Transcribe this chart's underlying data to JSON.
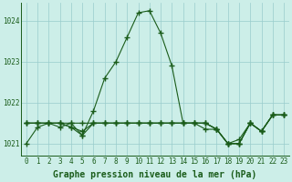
{
  "series": [
    [
      1021.0,
      1021.4,
      1021.5,
      1021.5,
      1021.4,
      1021.2,
      1021.8,
      1022.6,
      1023.0,
      1023.6,
      1024.2,
      1024.25,
      1023.7,
      1022.9,
      1021.5,
      1021.5,
      1021.5,
      1021.35,
      1021.0,
      1021.0,
      1021.5,
      1021.3,
      1021.7,
      1021.7
    ],
    [
      1021.5,
      1021.5,
      1021.5,
      1021.5,
      1021.5,
      1021.5,
      1021.5,
      1021.5,
      1021.5,
      1021.5,
      1021.5,
      1021.5,
      1021.5,
      1021.5,
      1021.5,
      1021.5,
      1021.5,
      1021.35,
      1021.0,
      1021.0,
      1021.5,
      1021.3,
      1021.7,
      1021.7
    ],
    [
      1021.5,
      1021.5,
      1021.5,
      1021.4,
      1021.5,
      1021.2,
      1021.5,
      1021.5,
      1021.5,
      1021.5,
      1021.5,
      1021.5,
      1021.5,
      1021.5,
      1021.5,
      1021.5,
      1021.35,
      1021.35,
      1021.0,
      1021.0,
      1021.5,
      1021.3,
      1021.7,
      1021.7
    ],
    [
      1021.5,
      1021.5,
      1021.5,
      1021.5,
      1021.4,
      1021.3,
      1021.5,
      1021.5,
      1021.5,
      1021.5,
      1021.5,
      1021.5,
      1021.5,
      1021.5,
      1021.5,
      1021.5,
      1021.5,
      1021.35,
      1021.0,
      1021.1,
      1021.5,
      1021.3,
      1021.7,
      1021.7
    ]
  ],
  "x": [
    0,
    1,
    2,
    3,
    4,
    5,
    6,
    7,
    8,
    9,
    10,
    11,
    12,
    13,
    14,
    15,
    16,
    17,
    18,
    19,
    20,
    21,
    22,
    23
  ],
  "line_color": "#1a5c1a",
  "marker": "+",
  "marker_size": 4,
  "background_color": "#cceee8",
  "grid_color": "#99cccc",
  "xlabel": "Graphe pression niveau de la mer (hPa)",
  "ylim": [
    1020.7,
    1024.45
  ],
  "xlim": [
    -0.5,
    23.5
  ],
  "yticks": [
    1021,
    1022,
    1023,
    1024
  ],
  "xticks": [
    0,
    1,
    2,
    3,
    4,
    5,
    6,
    7,
    8,
    9,
    10,
    11,
    12,
    13,
    14,
    15,
    16,
    17,
    18,
    19,
    20,
    21,
    22,
    23
  ],
  "tick_fontsize": 5.5,
  "xlabel_fontsize": 7,
  "linewidth": 0.8
}
